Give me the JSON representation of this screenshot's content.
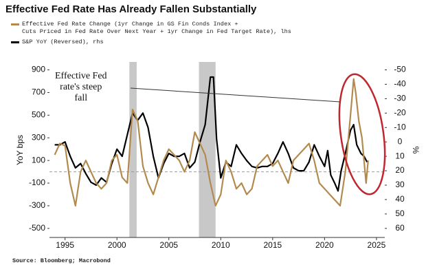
{
  "chart_data": {
    "type": "line",
    "title": "Effective Fed Rate Has Already Fallen Substantially",
    "ylabel": "YoY bps",
    "y2label": "%",
    "annotation": [
      "Effective Fed",
      "rate's steep",
      "fall"
    ],
    "source": "Source: Bloomberg; Macrobond",
    "xlim": [
      1993.5,
      2025.8
    ],
    "xticks": [
      1995,
      2000,
      2005,
      2010,
      2015,
      2020,
      2025
    ],
    "ylim": [
      -580,
      970
    ],
    "yticks": [
      -500,
      -300,
      -100,
      100,
      300,
      500,
      700,
      900
    ],
    "y2lim": [
      66.3,
      -55.5
    ],
    "y2ticks": [
      -50,
      -40,
      -30,
      -20,
      -10,
      0,
      10,
      20,
      30,
      40,
      50,
      60
    ],
    "reference_line": 0,
    "shading": [
      [
        2001.2,
        2001.9
      ],
      [
        2007.9,
        2009.5
      ]
    ],
    "series": [
      {
        "name": "Effective Fed Rate Change (1yr Change in GS Fin Conds Index +\nCuts Priced in Fed Rate Over Next Year + 1yr Change in Fed Target Rate), lhs",
        "color": "#b38a4e",
        "axis": "y",
        "x": [
          1994.0,
          1994.5,
          1995.0,
          1995.5,
          1996.0,
          1996.5,
          1997.0,
          1997.5,
          1998.0,
          1998.5,
          1999.0,
          1999.5,
          2000.0,
          2000.5,
          2001.0,
          2001.5,
          2002.0,
          2002.5,
          2003.0,
          2003.5,
          2004.0,
          2004.5,
          2005.0,
          2005.5,
          2006.0,
          2006.5,
          2007.0,
          2007.5,
          2008.0,
          2008.5,
          2009.0,
          2009.5,
          2010.0,
          2010.5,
          2011.0,
          2011.5,
          2012.0,
          2012.5,
          2013.0,
          2013.5,
          2014.0,
          2014.5,
          2015.0,
          2015.5,
          2016.0,
          2016.5,
          2017.0,
          2017.5,
          2018.0,
          2018.5,
          2019.0,
          2019.5,
          2020.0,
          2020.5,
          2021.0,
          2021.5,
          2022.0,
          2022.5,
          2022.8,
          2023.0,
          2023.3,
          2023.6,
          2024.0,
          2024.2
        ],
        "values": [
          150,
          250,
          230,
          -100,
          -300,
          0,
          100,
          0,
          -100,
          -150,
          -100,
          100,
          150,
          -50,
          -100,
          550,
          450,
          50,
          -100,
          -200,
          -50,
          100,
          200,
          150,
          100,
          0,
          100,
          350,
          250,
          150,
          -100,
          -300,
          -200,
          100,
          0,
          -150,
          -100,
          -200,
          -150,
          50,
          100,
          150,
          50,
          100,
          0,
          -100,
          100,
          150,
          200,
          250,
          100,
          -100,
          -150,
          -200,
          -250,
          -300,
          0,
          500,
          820,
          700,
          450,
          300,
          -100,
          100
        ]
      },
      {
        "name": "S&P YoY (Reversed), rhs",
        "color": "#000000",
        "axis": "y2",
        "x": [
          1994.0,
          1994.5,
          1995.0,
          1995.5,
          1996.0,
          1996.5,
          1997.0,
          1997.5,
          1998.0,
          1998.5,
          1999.0,
          1999.5,
          2000.0,
          2000.5,
          2001.0,
          2001.5,
          2002.0,
          2002.5,
          2003.0,
          2003.5,
          2004.0,
          2004.5,
          2005.0,
          2005.5,
          2006.0,
          2006.5,
          2007.0,
          2007.5,
          2008.0,
          2008.5,
          2009.0,
          2009.3,
          2009.6,
          2010.0,
          2010.5,
          2011.0,
          2011.5,
          2012.0,
          2012.5,
          2013.0,
          2013.5,
          2014.0,
          2014.5,
          2015.0,
          2015.5,
          2016.0,
          2016.5,
          2017.0,
          2017.5,
          2018.0,
          2018.5,
          2019.0,
          2019.5,
          2020.0,
          2020.3,
          2020.6,
          2021.0,
          2021.3,
          2021.6,
          2022.0,
          2022.5,
          2022.8,
          2023.1,
          2023.5,
          2023.8,
          2024.1
        ],
        "values": [
          2,
          2,
          0,
          10,
          18,
          15,
          22,
          28,
          30,
          25,
          28,
          15,
          5,
          10,
          -5,
          -20,
          -15,
          -20,
          -10,
          10,
          25,
          15,
          8,
          10,
          10,
          8,
          18,
          14,
          0,
          -12,
          -45,
          -45,
          -2,
          25,
          14,
          17,
          2,
          8,
          13,
          17,
          18,
          17,
          17,
          15,
          8,
          0,
          8,
          18,
          20,
          20,
          14,
          2,
          10,
          17,
          6,
          23,
          29,
          34,
          20,
          8,
          -8,
          -12,
          2,
          8,
          10,
          14
        ]
      }
    ]
  }
}
